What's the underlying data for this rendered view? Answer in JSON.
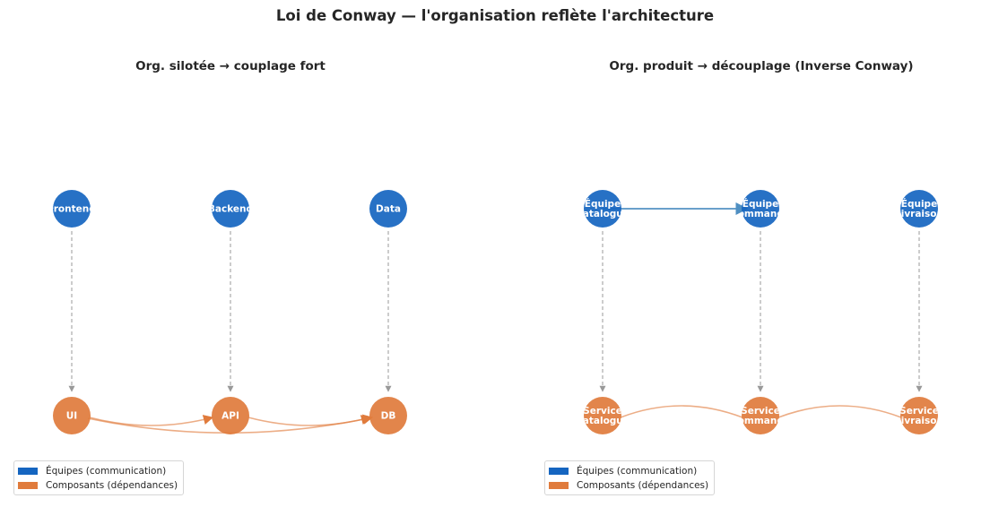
{
  "title": "Loi de Conway — l'organisation reflète l'architecture",
  "colors": {
    "team": "#1565c0",
    "component": "#e07b3c",
    "arrow": "#999999",
    "comm_edge": "#4f8fc2"
  },
  "panels": [
    {
      "title": "Org. silotée → couplage fort",
      "teams": [
        "Frontend",
        "Backend",
        "Data"
      ],
      "components": [
        "UI",
        "API",
        "DB"
      ],
      "team_links": [],
      "dependencies": [
        [
          "UI",
          "API"
        ],
        [
          "UI",
          "DB"
        ],
        [
          "API",
          "DB"
        ]
      ],
      "legend": [
        "Équipes (communication)",
        "Composants (dépendances)"
      ]
    },
    {
      "title": "Org. produit → découplage (Inverse Conway)",
      "teams": [
        "Équipe\nCatalogue",
        "Équipe\nCommande",
        "Équipe\nLivraison"
      ],
      "components": [
        "Service\nCatalogue",
        "Service\nCommande",
        "Service\nLivraison"
      ],
      "team_links": [
        [
          "Équipe\nCatalogue",
          "Équipe\nCommande"
        ]
      ],
      "dependencies": [
        [
          "Service\nCatalogue",
          "Service\nCommande"
        ],
        [
          "Service\nCommande",
          "Service\nLivraison"
        ]
      ],
      "legend": [
        "Équipes (communication)",
        "Composants (dépendances)"
      ]
    }
  ]
}
